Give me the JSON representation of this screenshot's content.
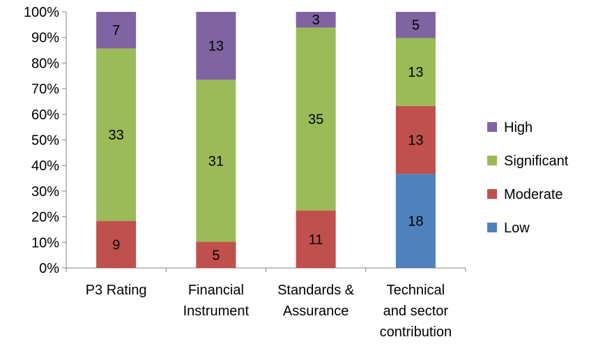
{
  "chart_data": {
    "type": "bar",
    "stacked": true,
    "percent_stacked": true,
    "categories": [
      [
        "P3 Rating"
      ],
      [
        "Financial",
        "Instrument"
      ],
      [
        "Standards &",
        "Assurance"
      ],
      [
        "Technical",
        "and sector",
        "contribution"
      ]
    ],
    "series": [
      {
        "name": "Low",
        "color": "#4F81BD",
        "values": [
          0,
          0,
          0,
          18
        ]
      },
      {
        "name": "Moderate",
        "color": "#C0504D",
        "values": [
          9,
          5,
          11,
          13
        ]
      },
      {
        "name": "Significant",
        "color": "#9BBB59",
        "values": [
          33,
          31,
          35,
          13
        ]
      },
      {
        "name": "High",
        "color": "#8064A2",
        "values": [
          7,
          13,
          3,
          5
        ]
      }
    ],
    "ylim": [
      0,
      100
    ],
    "yticks": [
      "0%",
      "10%",
      "20%",
      "30%",
      "40%",
      "50%",
      "60%",
      "70%",
      "80%",
      "90%",
      "100%"
    ],
    "grid": false,
    "legend": {
      "position": "right",
      "order": [
        "High",
        "Significant",
        "Moderate",
        "Low"
      ]
    }
  }
}
